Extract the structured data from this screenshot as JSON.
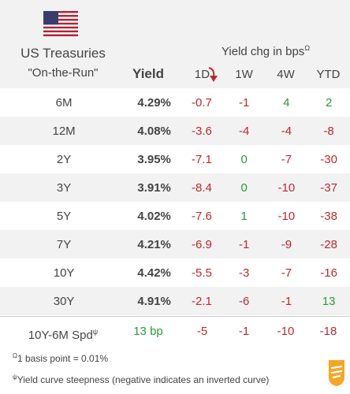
{
  "header": {
    "title_line1": "US Treasuries",
    "title_line2": "\"On-the-Run\"",
    "yield_label": "Yield",
    "change_label": "Yield chg in bps",
    "change_label_mark": "Ω",
    "columns": [
      "1D",
      "1W",
      "4W",
      "YTD"
    ],
    "sort_icon": "arrow-down-icon",
    "flag_icon": "us-flag-icon"
  },
  "colors": {
    "negative": "#c0282d",
    "positive": "#2c9a35",
    "band": "#f2f2f2"
  },
  "rows": [
    {
      "tenor": "6M",
      "yield": "4.29%",
      "d1": "-0.7",
      "w1": "-1",
      "w4": "4",
      "ytd": "2"
    },
    {
      "tenor": "12M",
      "yield": "4.08%",
      "d1": "-3.6",
      "w1": "-4",
      "w4": "-4",
      "ytd": "-8"
    },
    {
      "tenor": "2Y",
      "yield": "3.95%",
      "d1": "-7.1",
      "w1": "0",
      "w4": "-7",
      "ytd": "-30"
    },
    {
      "tenor": "3Y",
      "yield": "3.91%",
      "d1": "-8.4",
      "w1": "0",
      "w4": "-10",
      "ytd": "-37"
    },
    {
      "tenor": "5Y",
      "yield": "4.02%",
      "d1": "-7.6",
      "w1": "1",
      "w4": "-10",
      "ytd": "-38"
    },
    {
      "tenor": "7Y",
      "yield": "4.21%",
      "d1": "-6.9",
      "w1": "-1",
      "w4": "-9",
      "ytd": "-28"
    },
    {
      "tenor": "10Y",
      "yield": "4.42%",
      "d1": "-5.5",
      "w1": "-3",
      "w4": "-7",
      "ytd": "-16"
    },
    {
      "tenor": "30Y",
      "yield": "4.91%",
      "d1": "-2.1",
      "w1": "-6",
      "w4": "-1",
      "ytd": "13"
    }
  ],
  "spread": {
    "label": "10Y-6M Spd",
    "label_mark": "ψ",
    "value": "13 bp",
    "d1": "-5",
    "w1": "-1",
    "w4": "-10",
    "ytd": "-18"
  },
  "footnotes": {
    "basis_mark": "Ω",
    "basis_text": "1 basis point = 0.01%",
    "steep_mark": "ψ",
    "steep_text": "Yield curve steepness (negative indicates an inverted curve)"
  },
  "logo_icon": "brand-logo-icon"
}
